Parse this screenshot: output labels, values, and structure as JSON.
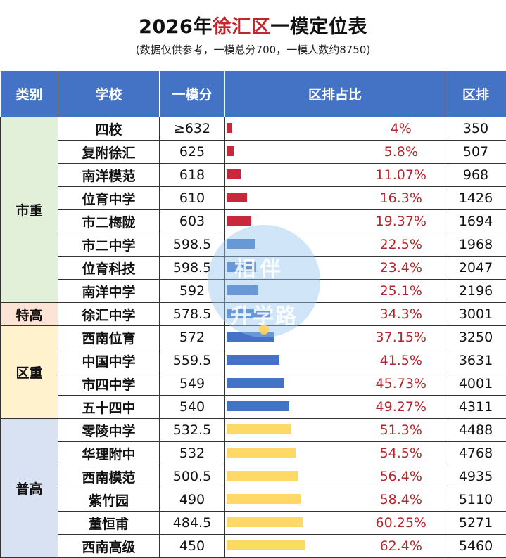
{
  "title": {
    "year": "2026年",
    "district": "徐汇区",
    "rest": "一模定位表"
  },
  "subtitle": "(数据仅供参考，一模总分700，一模人数约8750)",
  "headers": {
    "category": "类别",
    "school": "学校",
    "score": "一模分",
    "share": "区排占比",
    "rank": "区排"
  },
  "watermark": {
    "line1": "相伴",
    "line2": "升学路"
  },
  "colors": {
    "header": "#4472c4",
    "pct_text": "#b3262b",
    "bar_red": "#c8283c",
    "bar_blue": "#4472c4",
    "bar_yellow": "#ffd966",
    "cat_shizhong": "#e2efd9",
    "cat_tegao": "#fbe4d5",
    "cat_quzhong": "#fff2cc",
    "cat_pugao": "#d9e2f3"
  },
  "categories": [
    {
      "label": "市重",
      "rows": 8,
      "color_key": "cat_shizhong"
    },
    {
      "label": "特高",
      "rows": 1,
      "color_key": "cat_tegao"
    },
    {
      "label": "区重",
      "rows": 4,
      "color_key": "cat_quzhong"
    },
    {
      "label": "普高",
      "rows": 6,
      "color_key": "cat_pugao"
    }
  ],
  "rows": [
    {
      "school": "四校",
      "score": "≥632",
      "share": "4%",
      "share_value": 4,
      "rank": "350",
      "bar": "bar_red"
    },
    {
      "school": "复附徐汇",
      "score": "625",
      "share": "5.8%",
      "share_value": 5.8,
      "rank": "507",
      "bar": "bar_red"
    },
    {
      "school": "南洋模范",
      "score": "618",
      "share": "11.07%",
      "share_value": 11.07,
      "rank": "968",
      "bar": "bar_red"
    },
    {
      "school": "位育中学",
      "score": "610",
      "share": "16.3%",
      "share_value": 16.3,
      "rank": "1426",
      "bar": "bar_red"
    },
    {
      "school": "市二梅陇",
      "score": "603",
      "share": "19.37%",
      "share_value": 19.37,
      "rank": "1694",
      "bar": "bar_red"
    },
    {
      "school": "市二中学",
      "score": "598.5",
      "share": "22.5%",
      "share_value": 22.5,
      "rank": "1968",
      "bar": "bar_blue"
    },
    {
      "school": "位育科技",
      "score": "598.5",
      "share": "23.4%",
      "share_value": 23.4,
      "rank": "2047",
      "bar": "bar_blue"
    },
    {
      "school": "南洋中学",
      "score": "592",
      "share": "25.1%",
      "share_value": 25.1,
      "rank": "2196",
      "bar": "bar_blue"
    },
    {
      "school": "徐汇中学",
      "score": "578.5",
      "share": "34.3%",
      "share_value": 34.3,
      "rank": "3001",
      "bar": "bar_blue"
    },
    {
      "school": "西南位育",
      "score": "572",
      "share": "37.15%",
      "share_value": 37.15,
      "rank": "3250",
      "bar": "bar_blue"
    },
    {
      "school": "中国中学",
      "score": "559.5",
      "share": "41.5%",
      "share_value": 41.5,
      "rank": "3631",
      "bar": "bar_blue"
    },
    {
      "school": "市四中学",
      "score": "549",
      "share": "45.73%",
      "share_value": 45.73,
      "rank": "4001",
      "bar": "bar_blue"
    },
    {
      "school": "五十四中",
      "score": "540",
      "share": "49.27%",
      "share_value": 49.27,
      "rank": "4311",
      "bar": "bar_blue"
    },
    {
      "school": "零陵中学",
      "score": "532.5",
      "share": "51.3%",
      "share_value": 51.3,
      "rank": "4488",
      "bar": "bar_yellow"
    },
    {
      "school": "华理附中",
      "score": "532",
      "share": "54.5%",
      "share_value": 54.5,
      "rank": "4768",
      "bar": "bar_yellow"
    },
    {
      "school": "西南模范",
      "score": "500.5",
      "share": "56.4%",
      "share_value": 56.4,
      "rank": "4935",
      "bar": "bar_yellow"
    },
    {
      "school": "紫竹园",
      "score": "490",
      "share": "58.4%",
      "share_value": 58.4,
      "rank": "5110",
      "bar": "bar_yellow"
    },
    {
      "school": "董恒甫",
      "score": "484.5",
      "share": "60.25%",
      "share_value": 60.25,
      "rank": "5271",
      "bar": "bar_yellow"
    },
    {
      "school": "西南高级",
      "score": "450",
      "share": "62.4%",
      "share_value": 62.4,
      "rank": "5460",
      "bar": "bar_yellow"
    }
  ]
}
